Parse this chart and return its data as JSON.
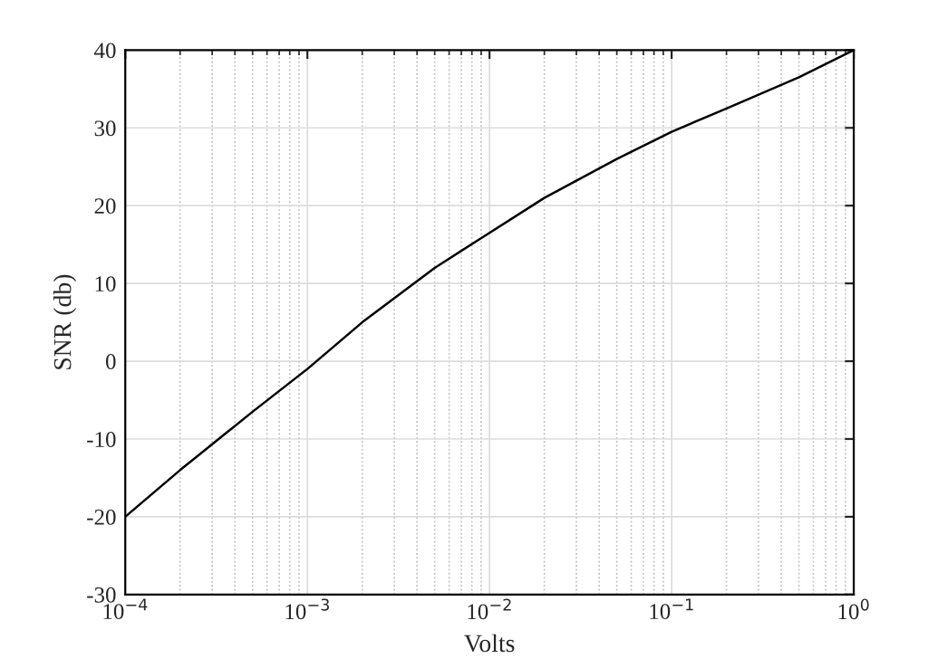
{
  "chart_data": {
    "type": "line",
    "xlabel": "Volts",
    "ylabel": "SNR (db)",
    "log": "x",
    "grid": true,
    "xlim": [
      0.0001,
      1
    ],
    "ylim": [
      -30,
      40
    ],
    "xticks": [
      {
        "value": 0.0001,
        "label": "10$^{−4}$"
      },
      {
        "value": 0.001,
        "label": "10$^{−3}$"
      },
      {
        "value": 0.01,
        "label": "10$^{−2}$"
      },
      {
        "value": 0.1,
        "label": "10$^{−1}$"
      },
      {
        "value": 1,
        "label": "10$^{0}$"
      }
    ],
    "yticks": [
      -30,
      -20,
      -10,
      0,
      10,
      20,
      30,
      40
    ],
    "series": [
      {
        "color": "#000000",
        "x": [
          0.0001,
          0.0002,
          0.0005,
          0.001,
          0.002,
          0.005,
          0.01,
          0.02,
          0.05,
          0.1,
          0.2,
          0.5,
          1
        ],
        "values": [
          -20,
          -14,
          -6.5,
          -1,
          5,
          12,
          16.5,
          21,
          26,
          29.5,
          32.5,
          36.5,
          40
        ]
      }
    ]
  }
}
